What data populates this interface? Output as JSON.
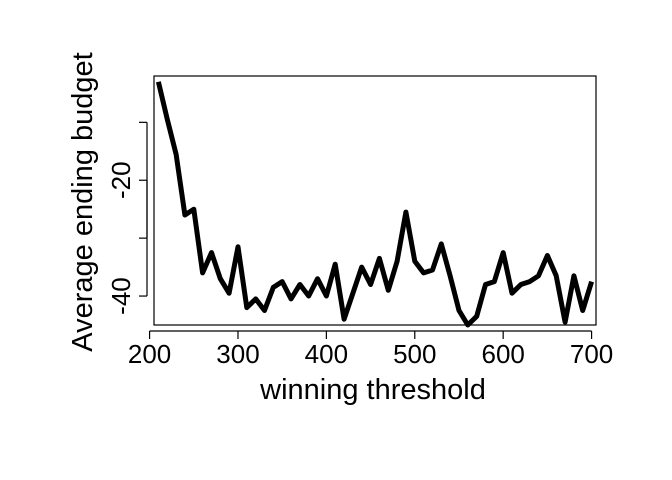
{
  "chart_data": {
    "type": "line",
    "title": "",
    "xlabel": "winning threshold",
    "ylabel": "Average ending budget",
    "xlim": [
      205,
      705
    ],
    "ylim": [
      -45,
      -2
    ],
    "x_ticks": [
      200,
      300,
      400,
      500,
      600,
      700
    ],
    "x_tick_labels": [
      "200",
      "300",
      "400",
      "500",
      "600",
      "700"
    ],
    "y_ticks": [
      -40,
      -20
    ],
    "y_tick_labels": [
      "-40",
      "-20"
    ],
    "grid": false,
    "legend": "none",
    "line_color": "#000000",
    "series": [
      {
        "x": [
          210,
          220,
          230,
          240,
          250,
          260,
          270,
          280,
          290,
          300,
          310,
          320,
          330,
          340,
          350,
          360,
          370,
          380,
          390,
          400,
          410,
          420,
          430,
          440,
          450,
          460,
          470,
          480,
          490,
          500,
          510,
          520,
          530,
          540,
          550,
          560,
          570,
          580,
          590,
          600,
          610,
          620,
          630,
          640,
          650,
          660,
          670,
          680,
          690,
          700
        ],
        "values": [
          -3,
          -9.5,
          -15.5,
          -26,
          -25,
          -36,
          -32.5,
          -37,
          -39.5,
          -31.5,
          -42,
          -40.5,
          -42.5,
          -38.5,
          -37.5,
          -40.5,
          -38,
          -40,
          -37,
          -40,
          -34.5,
          -44,
          -39.5,
          -35,
          -38,
          -33.5,
          -39,
          -34,
          -25.5,
          -34,
          -36,
          -35.5,
          -31,
          -36.5,
          -42.5,
          -45,
          -43.5,
          -38,
          -37.5,
          -32.5,
          -39.5,
          -38,
          -37.5,
          -36.5,
          -33,
          -36.5,
          -44.5,
          -36.5,
          -42.5,
          -37.5
        ]
      }
    ]
  }
}
